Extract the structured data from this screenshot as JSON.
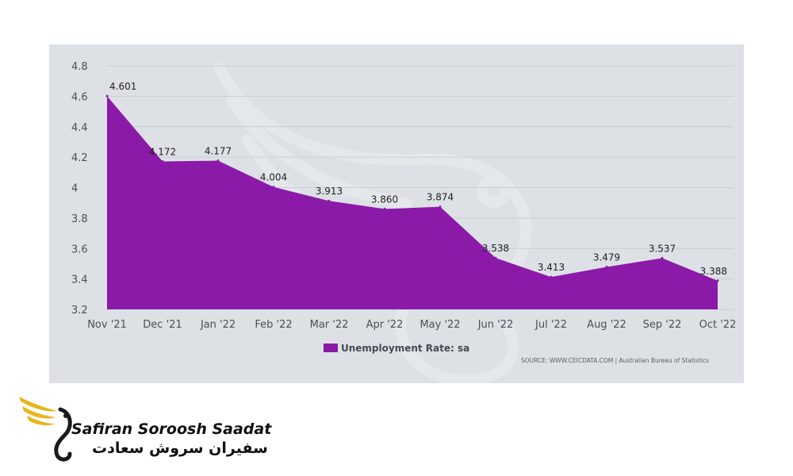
{
  "chart_data": {
    "type": "area",
    "categories": [
      "Nov '21",
      "Dec '21",
      "Jan '22",
      "Feb '22",
      "Mar '22",
      "Apr '22",
      "May '22",
      "Jun '22",
      "Jul '22",
      "Aug '22",
      "Sep '22",
      "Oct '22"
    ],
    "series": [
      {
        "name": "Unemployment Rate: sa",
        "values": [
          4.601,
          4.172,
          4.177,
          4.004,
          3.913,
          3.86,
          3.874,
          3.538,
          3.413,
          3.479,
          3.537,
          3.388
        ],
        "labels": [
          "4.601",
          "4.172",
          "4.177",
          "4.004",
          "3.913",
          "3.860",
          "3.874",
          "3.538",
          "3.413",
          "3.479",
          "3.537",
          "3.388"
        ],
        "color": "#8b1aa8"
      }
    ],
    "ylim": [
      3.2,
      4.8
    ],
    "yticks": [
      3.2,
      3.4,
      3.6,
      3.8,
      4,
      4.2,
      4.4,
      4.6,
      4.8
    ],
    "ytick_labels": [
      "3.2",
      "3.4",
      "3.6",
      "3.8",
      "4",
      "4.2",
      "4.4",
      "4.6",
      "4.8"
    ],
    "grid": true,
    "legend_position": "bottom",
    "source": "SOURCE: WWW.CEICDATA.COM | Australian Bureau of Statistics"
  },
  "colors": {
    "panel_background": "#dde1e6",
    "area_fill": "#8b1aa8",
    "gridline": "#c9ced4",
    "brand_gold": "#e8b51c"
  },
  "brand": {
    "name_en": "Safiran Soroosh Saadat",
    "name_fa": "سفیران سروش سعادت",
    "logo_icon": "gold-swan-wing-logo"
  }
}
